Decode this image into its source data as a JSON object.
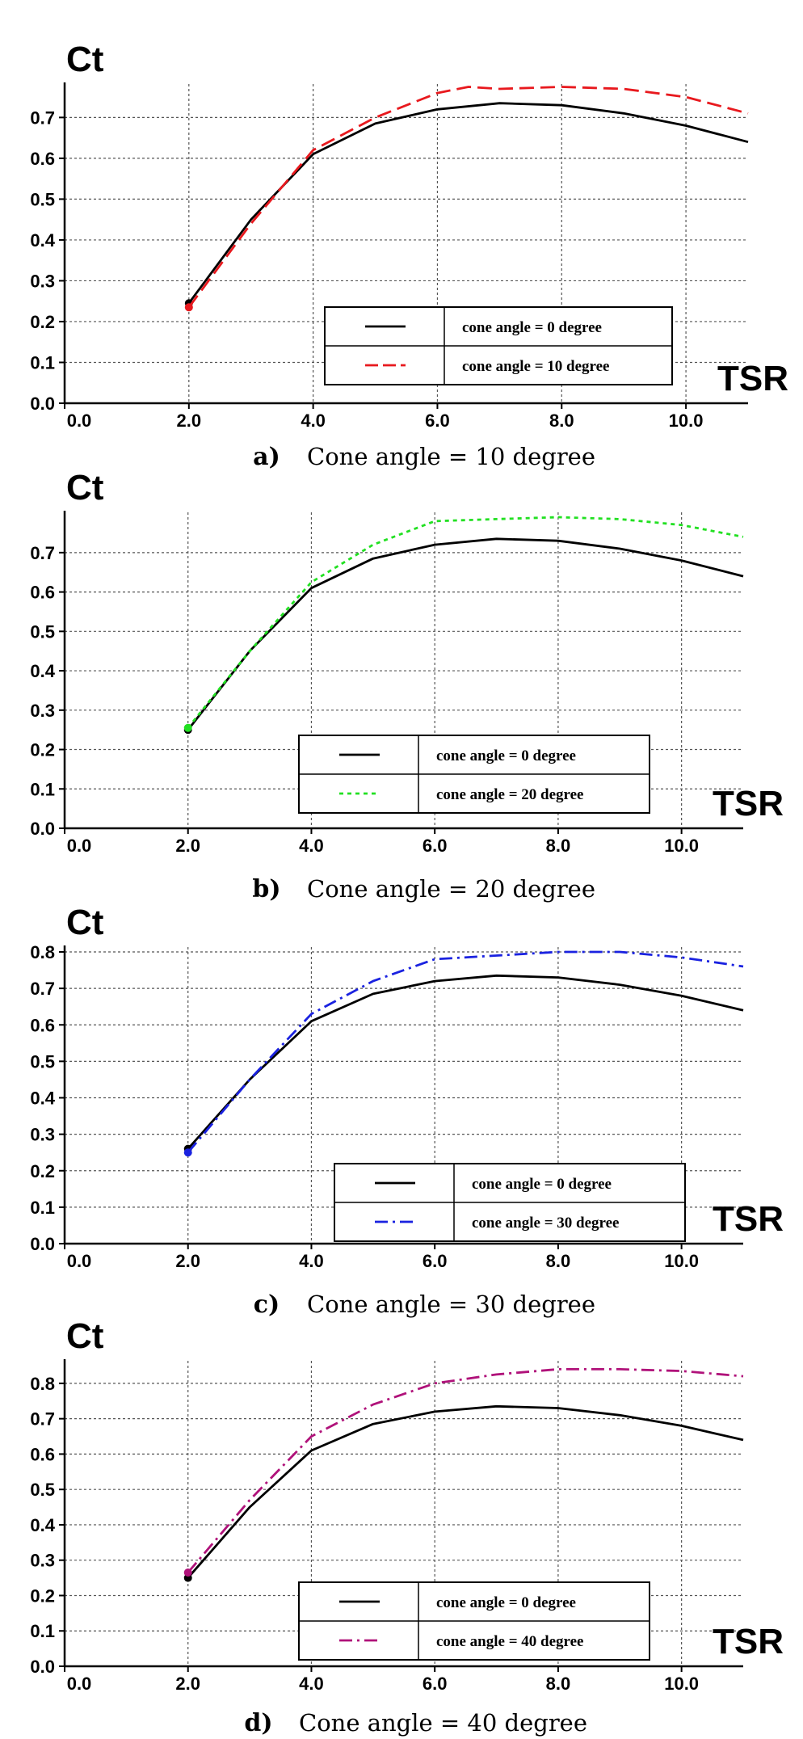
{
  "chart_data": [
    {
      "type": "line",
      "title": "",
      "ylabel": "Ct",
      "xlabel": "TSR",
      "xlim": [
        0,
        11
      ],
      "ylim": [
        0,
        0.77
      ],
      "xticks": [
        "0.0",
        "2.0",
        "4.0",
        "6.0",
        "8.0",
        "10.0"
      ],
      "yticks": [
        "0.0",
        "0.1",
        "0.2",
        "0.3",
        "0.4",
        "0.5",
        "0.6",
        "0.7"
      ],
      "grid": true,
      "legend_position": "lower-right",
      "caption_letter": "a)",
      "caption_text": "Cone angle = 10 degree",
      "series": [
        {
          "name": "cone angle =   0 degree",
          "color": "#000000",
          "dash": "solid",
          "x": [
            2,
            3,
            4,
            5,
            6,
            7,
            8,
            9,
            10,
            11
          ],
          "y": [
            0.245,
            0.45,
            0.61,
            0.685,
            0.72,
            0.735,
            0.73,
            0.71,
            0.68,
            0.64
          ]
        },
        {
          "name": "cone angle = 10 degree",
          "color": "#e8191e",
          "dash": "dashed",
          "x": [
            2,
            3,
            4,
            5,
            6,
            6.5,
            7,
            8,
            9,
            10,
            11
          ],
          "y": [
            0.235,
            0.44,
            0.62,
            0.7,
            0.76,
            0.775,
            0.77,
            0.775,
            0.77,
            0.75,
            0.71
          ]
        }
      ]
    },
    {
      "type": "line",
      "title": "",
      "ylabel": "Ct",
      "xlabel": "TSR",
      "xlim": [
        0,
        11
      ],
      "ylim": [
        0,
        0.79
      ],
      "xticks": [
        "0.0",
        "2.0",
        "4.0",
        "6.0",
        "8.0",
        "10.0"
      ],
      "yticks": [
        "0.0",
        "0.1",
        "0.2",
        "0.3",
        "0.4",
        "0.5",
        "0.6",
        "0.7"
      ],
      "grid": true,
      "legend_position": "lower-right",
      "caption_letter": "b)",
      "caption_text": "Cone angle = 20 degree",
      "series": [
        {
          "name": "cone angle =  0 degree",
          "color": "#000000",
          "dash": "solid",
          "x": [
            2,
            3,
            4,
            5,
            6,
            7,
            8,
            9,
            10,
            11
          ],
          "y": [
            0.25,
            0.45,
            0.61,
            0.685,
            0.72,
            0.735,
            0.73,
            0.71,
            0.68,
            0.64
          ]
        },
        {
          "name": "cone angle = 20 degree",
          "color": "#22e022",
          "dash": "dotted",
          "x": [
            2,
            3,
            4,
            5,
            6,
            7,
            8,
            9,
            10,
            11
          ],
          "y": [
            0.255,
            0.45,
            0.625,
            0.72,
            0.78,
            0.785,
            0.79,
            0.785,
            0.77,
            0.74
          ]
        }
      ]
    },
    {
      "type": "line",
      "title": "",
      "ylabel": "Ct",
      "xlabel": "TSR",
      "xlim": [
        0,
        11
      ],
      "ylim": [
        0,
        0.8
      ],
      "xticks": [
        "0.0",
        "2.0",
        "4.0",
        "6.0",
        "8.0",
        "10.0"
      ],
      "yticks": [
        "0.0",
        "0.1",
        "0.2",
        "0.3",
        "0.4",
        "0.5",
        "0.6",
        "0.7",
        "0.8"
      ],
      "grid": true,
      "legend_position": "lower-right",
      "caption_letter": "c)",
      "caption_text": "Cone angle = 30 degree",
      "series": [
        {
          "name": "cone angle =  0 degree",
          "color": "#000000",
          "dash": "solid",
          "x": [
            2,
            3,
            4,
            5,
            6,
            7,
            8,
            9,
            10,
            11
          ],
          "y": [
            0.26,
            0.45,
            0.61,
            0.685,
            0.72,
            0.735,
            0.73,
            0.71,
            0.68,
            0.64
          ]
        },
        {
          "name": "cone angle = 30 degree",
          "color": "#1a22e0",
          "dash": "dashdot",
          "x": [
            2,
            3,
            4,
            5,
            6,
            7,
            8,
            9,
            10,
            11
          ],
          "y": [
            0.25,
            0.45,
            0.63,
            0.72,
            0.78,
            0.79,
            0.8,
            0.8,
            0.785,
            0.76
          ]
        }
      ]
    },
    {
      "type": "line",
      "title": "",
      "ylabel": "Ct",
      "xlabel": "TSR",
      "xlim": [
        0,
        11
      ],
      "ylim": [
        0,
        0.85
      ],
      "xticks": [
        "0.0",
        "2.0",
        "4.0",
        "6.0",
        "8.0",
        "10.0"
      ],
      "yticks": [
        "0.0",
        "0.1",
        "0.2",
        "0.3",
        "0.4",
        "0.5",
        "0.6",
        "0.7",
        "0.8"
      ],
      "grid": true,
      "legend_position": "lower-right",
      "caption_letter": "d)",
      "caption_text": "Cone angle = 40 degree",
      "series": [
        {
          "name": "cone angle =  0 degree",
          "color": "#000000",
          "dash": "solid",
          "x": [
            2,
            3,
            4,
            5,
            6,
            7,
            8,
            9,
            10,
            11
          ],
          "y": [
            0.25,
            0.45,
            0.61,
            0.685,
            0.72,
            0.735,
            0.73,
            0.71,
            0.68,
            0.64
          ]
        },
        {
          "name": "cone angle = 40 degree",
          "color": "#b0127a",
          "dash": "dashdot",
          "x": [
            2,
            3,
            4,
            5,
            6,
            7,
            8,
            9,
            10,
            11
          ],
          "y": [
            0.265,
            0.47,
            0.65,
            0.74,
            0.8,
            0.825,
            0.84,
            0.84,
            0.835,
            0.82
          ]
        }
      ]
    }
  ]
}
